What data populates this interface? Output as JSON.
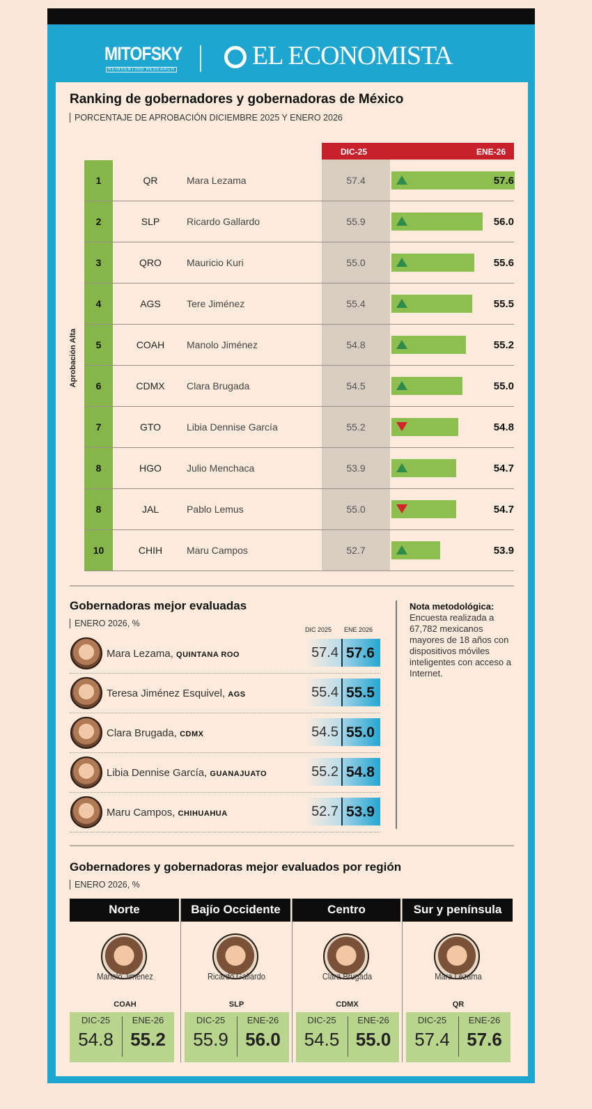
{
  "header": {
    "logo_left": "MITOFSKY",
    "logo_left_tagline": "REINVENTING RESEARCH",
    "logo_right": "EL ECONOMISTA"
  },
  "colors": {
    "frame": "#1fa6d0",
    "background": "#fcebdc",
    "bar_green": "#8dbe50",
    "header_red": "#c8202c",
    "up": "#2e8b4a",
    "down": "#d3242c"
  },
  "chart_data": {
    "type": "bar",
    "title": "Ranking de gobernadores y gobernadoras de México",
    "subtitle": "PORCENTAJE DE APROBACIÓN DICIEMBRE 2025 Y ENERO 2026",
    "group_label": "Aprobación Alta",
    "col_dic": "DIC-25",
    "col_ene": "ENE-26",
    "rows": [
      {
        "rank": "1",
        "state": "QR",
        "name": "Mara Lezama",
        "dic": 57.4,
        "ene": 57.6,
        "trend": "up"
      },
      {
        "rank": "2",
        "state": "SLP",
        "name": "Ricardo Gallardo",
        "dic": 55.9,
        "ene": 56.0,
        "trend": "up"
      },
      {
        "rank": "3",
        "state": "QRO",
        "name": "Mauricio Kuri",
        "dic": 55.0,
        "ene": 55.6,
        "trend": "up"
      },
      {
        "rank": "4",
        "state": "AGS",
        "name": "Tere Jiménez",
        "dic": 55.4,
        "ene": 55.5,
        "trend": "up"
      },
      {
        "rank": "5",
        "state": "COAH",
        "name": "Manolo Jiménez",
        "dic": 54.8,
        "ene": 55.2,
        "trend": "up"
      },
      {
        "rank": "6",
        "state": "CDMX",
        "name": "Clara Brugada",
        "dic": 54.5,
        "ene": 55.0,
        "trend": "up"
      },
      {
        "rank": "7",
        "state": "GTO",
        "name": "Libia Dennise García",
        "dic": 55.2,
        "ene": 54.8,
        "trend": "down"
      },
      {
        "rank": "8",
        "state": "HGO",
        "name": "Julio Menchaca",
        "dic": 53.9,
        "ene": 54.7,
        "trend": "up"
      },
      {
        "rank": "8",
        "state": "JAL",
        "name": "Pablo Lemus",
        "dic": 55.0,
        "ene": 54.7,
        "trend": "down"
      },
      {
        "rank": "10",
        "state": "CHIH",
        "name": "Maru Campos",
        "dic": 52.7,
        "ene": 53.9,
        "trend": "up"
      }
    ]
  },
  "gobernadoras": {
    "title": "Gobernadoras mejor evaluadas",
    "subtitle": "ENERO 2026, %",
    "col_dic": "DIC 2025",
    "col_ene": "ENE 2026",
    "rows": [
      {
        "name": "Mara Lezama,",
        "state": "QUINTANA ROO",
        "dic": "57.4",
        "ene": "57.6"
      },
      {
        "name": "Teresa Jiménez Esquivel,",
        "state": "AGS",
        "dic": "55.4",
        "ene": "55.5"
      },
      {
        "name": "Clara Brugada,",
        "state": "CDMX",
        "dic": "54.5",
        "ene": "55.0"
      },
      {
        "name": "Libia Dennise García,",
        "state": "GUANAJUATO",
        "dic": "55.2",
        "ene": "54.8"
      },
      {
        "name": "Maru Campos,",
        "state": "CHIHUAHUA",
        "dic": "52.7",
        "ene": "53.9"
      }
    ]
  },
  "nota": {
    "title": "Nota metodológica:",
    "text": "Encuesta realizada a 67,782 mexicanos mayores de 18 años con dispositivos móviles inteligentes con acceso a Internet."
  },
  "region": {
    "title": "Gobernadores y gobernadoras mejor evaluados por región",
    "subtitle": "ENERO 2026, %",
    "col_dic": "DIC-25",
    "col_ene": "ENE-26",
    "cols": [
      {
        "region": "Norte",
        "name": "Manolo Jiménez",
        "state": "COAH",
        "dic": "54.8",
        "ene": "55.2"
      },
      {
        "region": "Bajío Occidente",
        "name": "Ricardo Gallardo",
        "state": "SLP",
        "dic": "55.9",
        "ene": "56.0"
      },
      {
        "region": "Centro",
        "name": "Clara Brugada",
        "state": "CDMX",
        "dic": "54.5",
        "ene": "55.0"
      },
      {
        "region": "Sur y península",
        "name": "Mara Lezama",
        "state": "QR",
        "dic": "57.4",
        "ene": "57.6"
      }
    ]
  }
}
